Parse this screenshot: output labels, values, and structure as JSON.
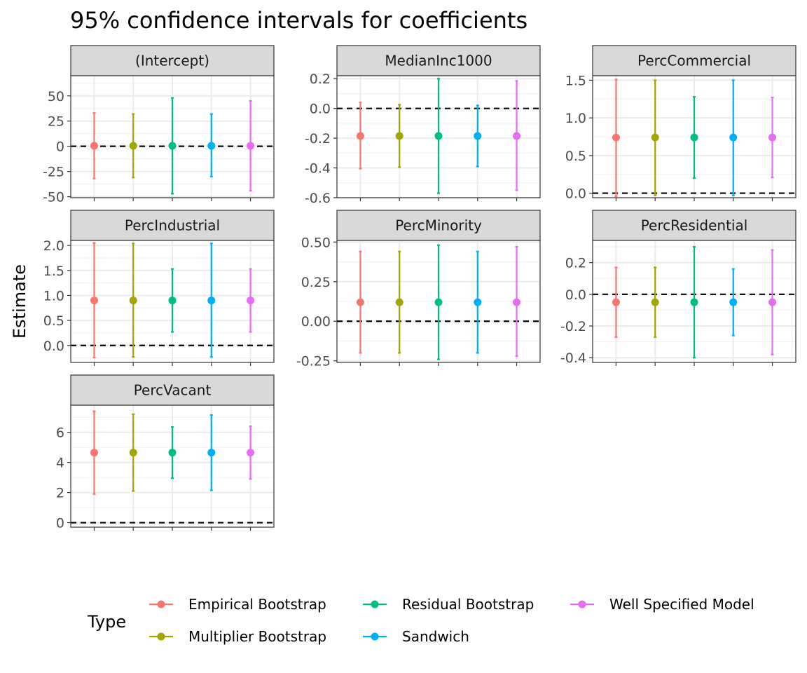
{
  "chart_data": {
    "type": "errorbar-faceted",
    "title": "95% confidence intervals for coefficients",
    "ylabel": "Estimate",
    "legend": {
      "title": "Type",
      "placement": "bottom",
      "entries": [
        "Empirical Bootstrap",
        "Multiplier Bootstrap",
        "Residual Bootstrap",
        "Sandwich",
        "Well Specified Model"
      ]
    },
    "colors": {
      "Empirical Bootstrap": "#F8766D",
      "Multiplier Bootstrap": "#A3A500",
      "Residual Bootstrap": "#00BF7D",
      "Sandwich": "#00B0F6",
      "Well Specified Model": "#E76BF3"
    },
    "reference_line": 0,
    "facets": [
      {
        "name": "(Intercept)",
        "ylim": [
          -51,
          70
        ],
        "ticks": [
          -50,
          -25,
          0,
          25,
          50
        ],
        "tick_labels": [
          "-50",
          "-25",
          "0",
          "25",
          "50"
        ],
        "points": [
          {
            "type": "Empirical Bootstrap",
            "estimate": 0.5,
            "lower": -32,
            "upper": 33
          },
          {
            "type": "Multiplier Bootstrap",
            "estimate": 0.5,
            "lower": -31,
            "upper": 32
          },
          {
            "type": "Residual Bootstrap",
            "estimate": 0.5,
            "lower": -47,
            "upper": 48
          },
          {
            "type": "Sandwich",
            "estimate": 0.5,
            "lower": -30,
            "upper": 32
          },
          {
            "type": "Well Specified Model",
            "estimate": 0.5,
            "lower": -44,
            "upper": 45
          }
        ]
      },
      {
        "name": "MedianInc1000",
        "ylim": [
          -0.6,
          0.22
        ],
        "ticks": [
          -0.6,
          -0.4,
          -0.2,
          0.0,
          0.2
        ],
        "tick_labels": [
          "-0.6",
          "-0.4",
          "-0.2",
          "0.0",
          "0.2"
        ],
        "points": [
          {
            "type": "Empirical Bootstrap",
            "estimate": -0.185,
            "lower": -0.405,
            "upper": 0.04
          },
          {
            "type": "Multiplier Bootstrap",
            "estimate": -0.185,
            "lower": -0.395,
            "upper": 0.025
          },
          {
            "type": "Residual Bootstrap",
            "estimate": -0.185,
            "lower": -0.57,
            "upper": 0.2
          },
          {
            "type": "Sandwich",
            "estimate": -0.185,
            "lower": -0.39,
            "upper": 0.02
          },
          {
            "type": "Well Specified Model",
            "estimate": -0.185,
            "lower": -0.55,
            "upper": 0.185
          }
        ]
      },
      {
        "name": "PercCommercial",
        "ylim": [
          -0.06,
          1.56
        ],
        "ticks": [
          0.0,
          0.5,
          1.0,
          1.5
        ],
        "tick_labels": [
          "0.0",
          "0.5",
          "1.0",
          "1.5"
        ],
        "points": [
          {
            "type": "Empirical Bootstrap",
            "estimate": 0.74,
            "lower": -0.04,
            "upper": 1.51
          },
          {
            "type": "Multiplier Bootstrap",
            "estimate": 0.74,
            "lower": -0.03,
            "upper": 1.5
          },
          {
            "type": "Residual Bootstrap",
            "estimate": 0.74,
            "lower": 0.2,
            "upper": 1.28
          },
          {
            "type": "Sandwich",
            "estimate": 0.74,
            "lower": -0.03,
            "upper": 1.5
          },
          {
            "type": "Well Specified Model",
            "estimate": 0.74,
            "lower": 0.21,
            "upper": 1.27
          }
        ]
      },
      {
        "name": "PercIndustrial",
        "ylim": [
          -0.34,
          2.1
        ],
        "ticks": [
          0.0,
          0.5,
          1.0,
          1.5,
          2.0
        ],
        "tick_labels": [
          "0.0",
          "0.5",
          "1.0",
          "1.5",
          "2.0"
        ],
        "points": [
          {
            "type": "Empirical Bootstrap",
            "estimate": 0.9,
            "lower": -0.24,
            "upper": 2.05
          },
          {
            "type": "Multiplier Bootstrap",
            "estimate": 0.9,
            "lower": -0.23,
            "upper": 2.04
          },
          {
            "type": "Residual Bootstrap",
            "estimate": 0.9,
            "lower": 0.27,
            "upper": 1.53
          },
          {
            "type": "Sandwich",
            "estimate": 0.9,
            "lower": -0.23,
            "upper": 2.04
          },
          {
            "type": "Well Specified Model",
            "estimate": 0.9,
            "lower": 0.27,
            "upper": 1.53
          }
        ]
      },
      {
        "name": "PercMinority",
        "ylim": [
          -0.26,
          0.51
        ],
        "ticks": [
          -0.25,
          0.0,
          0.25,
          0.5
        ],
        "tick_labels": [
          "-0.25",
          "0.00",
          "0.25",
          "0.50"
        ],
        "points": [
          {
            "type": "Empirical Bootstrap",
            "estimate": 0.12,
            "lower": -0.2,
            "upper": 0.44
          },
          {
            "type": "Multiplier Bootstrap",
            "estimate": 0.12,
            "lower": -0.2,
            "upper": 0.44
          },
          {
            "type": "Residual Bootstrap",
            "estimate": 0.12,
            "lower": -0.24,
            "upper": 0.48
          },
          {
            "type": "Sandwich",
            "estimate": 0.12,
            "lower": -0.2,
            "upper": 0.44
          },
          {
            "type": "Well Specified Model",
            "estimate": 0.12,
            "lower": -0.22,
            "upper": 0.47
          }
        ]
      },
      {
        "name": "PercResidential",
        "ylim": [
          -0.43,
          0.34
        ],
        "ticks": [
          -0.4,
          -0.2,
          0.0,
          0.2
        ],
        "tick_labels": [
          "-0.4",
          "-0.2",
          "0.0",
          "0.2"
        ],
        "points": [
          {
            "type": "Empirical Bootstrap",
            "estimate": -0.05,
            "lower": -0.27,
            "upper": 0.17
          },
          {
            "type": "Multiplier Bootstrap",
            "estimate": -0.05,
            "lower": -0.27,
            "upper": 0.17
          },
          {
            "type": "Residual Bootstrap",
            "estimate": -0.05,
            "lower": -0.4,
            "upper": 0.3
          },
          {
            "type": "Sandwich",
            "estimate": -0.05,
            "lower": -0.26,
            "upper": 0.16
          },
          {
            "type": "Well Specified Model",
            "estimate": -0.05,
            "lower": -0.38,
            "upper": 0.28
          }
        ]
      },
      {
        "name": "PercVacant",
        "ylim": [
          -0.3,
          7.8
        ],
        "ticks": [
          0,
          2,
          4,
          6
        ],
        "tick_labels": [
          "0",
          "2",
          "4",
          "6"
        ],
        "points": [
          {
            "type": "Empirical Bootstrap",
            "estimate": 4.65,
            "lower": 1.9,
            "upper": 7.4
          },
          {
            "type": "Multiplier Bootstrap",
            "estimate": 4.65,
            "lower": 2.1,
            "upper": 7.2
          },
          {
            "type": "Residual Bootstrap",
            "estimate": 4.65,
            "lower": 2.95,
            "upper": 6.35
          },
          {
            "type": "Sandwich",
            "estimate": 4.65,
            "lower": 2.15,
            "upper": 7.15
          },
          {
            "type": "Well Specified Model",
            "estimate": 4.65,
            "lower": 2.9,
            "upper": 6.4
          }
        ]
      }
    ]
  }
}
